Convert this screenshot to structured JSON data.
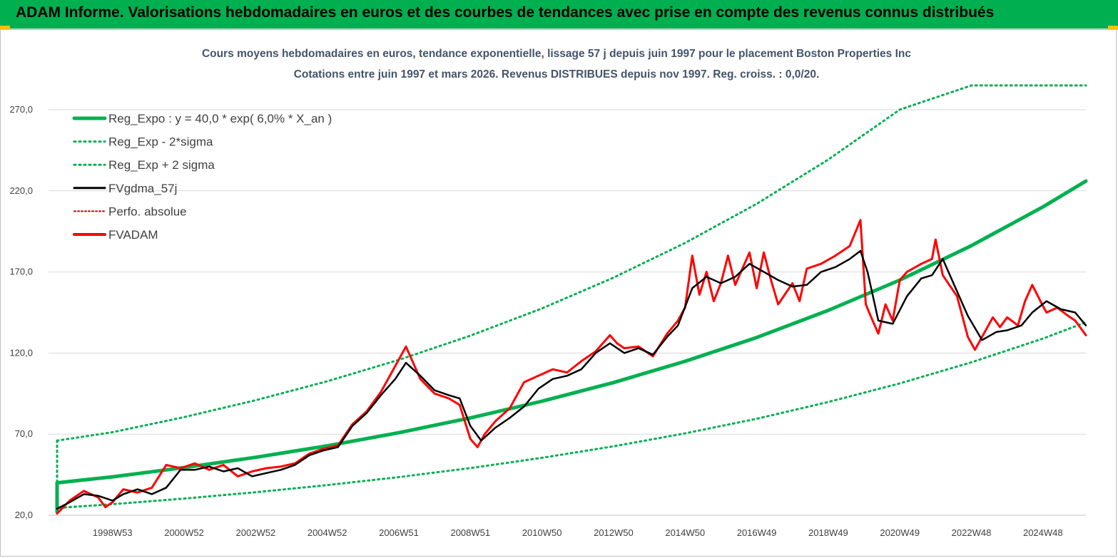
{
  "banner": {
    "title": "ADAM Informe. Valorisations hebdomadaires en euros et des courbes de tendances avec prise en compte des revenus connus distribués"
  },
  "colors": {
    "banner_bg": "#00b050",
    "reg_expo": "#00b050",
    "band": "#00b050",
    "fvgdma": "#000000",
    "perfo": "#c00000",
    "fvadam": "#ff0000",
    "grid": "#d9d9d9",
    "title": "#44546a"
  },
  "chart_data": {
    "type": "line",
    "title": [
      "Cours moyens hebdomadaires en euros, tendance exponentielle, lissage 57 j depuis juin 1997 pour le placement Boston Properties Inc",
      "Cotations entre juin 1997 et mars 2026. Revenus DISTRIBUES depuis nov 1997. Reg. croiss. : 0,0/20."
    ],
    "xlabel": "",
    "ylabel": "",
    "x_unit": "year",
    "xlim": [
      1997.45,
      2026.2
    ],
    "ylim": [
      20,
      290
    ],
    "yticks": [
      20,
      70,
      120,
      170,
      220,
      270
    ],
    "ytick_labels": [
      "20,0",
      "70,0",
      "120,0",
      "170,0",
      "220,0",
      "270,0"
    ],
    "xtick_labels": [
      "1998W53",
      "2000W52",
      "2002W52",
      "2004W52",
      "2006W51",
      "2008W51",
      "2010W50",
      "2012W50",
      "2014W50",
      "2016W49",
      "2018W49",
      "2020W49",
      "2022W48",
      "2024W48"
    ],
    "xtick_positions": [
      1999.0,
      2001.0,
      2003.0,
      2005.0,
      2007.0,
      2009.0,
      2011.0,
      2013.0,
      2015.0,
      2017.0,
      2019.0,
      2021.0,
      2023.0,
      2025.0
    ],
    "grid": true,
    "legend_position": "top-left",
    "legend": [
      {
        "label": "Reg_Expo : y = 40,0 * exp( 6,0% *  X_an )",
        "style": "thick-solid",
        "color": "#00b050"
      },
      {
        "label": "Reg_Exp - 2*sigma",
        "style": "dotted",
        "color": "#00b050"
      },
      {
        "label": "Reg_Exp + 2 sigma",
        "style": "dotted",
        "color": "#00b050"
      },
      {
        "label": "FVgdma_57j",
        "style": "solid",
        "color": "#000000"
      },
      {
        "label": "Perfo. absolue",
        "style": "dotted",
        "color": "#c00000"
      },
      {
        "label": "FVADAM",
        "style": "thick-solid",
        "color": "#ff0000"
      }
    ],
    "series": [
      {
        "name": "Reg_Expo",
        "x": [
          1997.45,
          1999.0,
          2001.0,
          2003.0,
          2005.0,
          2007.0,
          2009.0,
          2011.0,
          2013.0,
          2015.0,
          2017.0,
          2019.0,
          2021.0,
          2023.0,
          2025.0,
          2026.2
        ],
        "values": [
          40.0,
          43.7,
          49.4,
          55.7,
          62.8,
          70.9,
          80.0,
          90.3,
          101.8,
          114.9,
          129.6,
          146.3,
          165.0,
          186.2,
          210.1,
          226.0
        ]
      },
      {
        "name": "Reg_Exp - 2*sigma",
        "x": [
          1997.45,
          1999.0,
          2001.0,
          2003.0,
          2005.0,
          2007.0,
          2009.0,
          2011.0,
          2013.0,
          2015.0,
          2017.0,
          2019.0,
          2021.0,
          2023.0,
          2025.0,
          2026.2
        ],
        "values": [
          24.5,
          26.8,
          30.3,
          34.2,
          38.6,
          43.5,
          49.1,
          55.4,
          62.5,
          70.5,
          79.5,
          89.8,
          101.3,
          114.3,
          128.9,
          139.0
        ]
      },
      {
        "name": "Reg_Exp + 2 sigma",
        "x": [
          1997.45,
          1999.0,
          2001.0,
          2003.0,
          2005.0,
          2007.0,
          2009.0,
          2011.0,
          2013.0,
          2015.0,
          2017.0,
          2019.0,
          2021.0,
          2023.0,
          2025.0,
          2026.2
        ],
        "values": [
          66.0,
          71.2,
          80.5,
          90.9,
          102.6,
          115.8,
          130.7,
          147.5,
          166.5,
          187.9,
          212.0,
          239.3,
          270.1,
          285.0,
          285.0,
          285.0
        ]
      },
      {
        "name": "FVgdma_57j",
        "x": [
          1997.45,
          1997.8,
          1998.2,
          1998.6,
          1999.0,
          1999.3,
          1999.7,
          2000.1,
          2000.5,
          2000.9,
          2001.3,
          2001.7,
          2002.1,
          2002.5,
          2002.9,
          2003.3,
          2003.7,
          2004.1,
          2004.5,
          2004.9,
          2005.3,
          2005.7,
          2006.1,
          2006.5,
          2006.9,
          2007.2,
          2007.6,
          2008.0,
          2008.4,
          2008.7,
          2009.0,
          2009.3,
          2009.7,
          2010.1,
          2010.5,
          2010.9,
          2011.3,
          2011.7,
          2012.1,
          2012.5,
          2012.9,
          2013.3,
          2013.7,
          2014.1,
          2014.5,
          2014.8,
          2015.2,
          2015.6,
          2016.0,
          2016.4,
          2016.8,
          2017.2,
          2017.6,
          2018.0,
          2018.4,
          2018.8,
          2019.2,
          2019.6,
          2019.9,
          2020.1,
          2020.4,
          2020.8,
          2021.2,
          2021.6,
          2021.9,
          2022.2,
          2022.6,
          2022.9,
          2023.3,
          2023.7,
          2024.0,
          2024.4,
          2024.7,
          2025.1,
          2025.5,
          2025.9,
          2026.2
        ],
        "values": [
          24,
          28,
          33,
          32,
          29,
          33,
          36,
          33,
          37,
          48,
          48,
          50,
          47,
          49,
          44,
          46,
          48,
          51,
          57,
          60,
          62,
          75,
          83,
          94,
          104,
          114,
          106,
          97,
          94,
          92,
          75,
          66,
          74,
          80,
          87,
          98,
          104,
          106,
          110,
          120,
          126,
          120,
          123,
          119,
          130,
          137,
          160,
          167,
          163,
          167,
          175,
          170,
          165,
          161,
          162,
          170,
          173,
          178,
          183,
          170,
          140,
          138,
          155,
          166,
          168,
          178,
          158,
          143,
          128,
          133,
          134,
          137,
          145,
          152,
          147,
          145,
          137
        ]
      },
      {
        "name": "FVADAM",
        "x": [
          1997.45,
          1997.8,
          1998.2,
          1998.6,
          1998.8,
          1999.0,
          1999.3,
          1999.7,
          2000.1,
          2000.5,
          2000.9,
          2001.3,
          2001.7,
          2002.1,
          2002.5,
          2002.9,
          2003.3,
          2003.7,
          2004.1,
          2004.5,
          2004.9,
          2005.3,
          2005.7,
          2006.1,
          2006.5,
          2006.9,
          2007.2,
          2007.4,
          2007.6,
          2008.0,
          2008.4,
          2008.7,
          2009.0,
          2009.2,
          2009.4,
          2009.7,
          2010.1,
          2010.5,
          2010.9,
          2011.3,
          2011.7,
          2012.1,
          2012.5,
          2012.9,
          2013.1,
          2013.3,
          2013.7,
          2014.1,
          2014.5,
          2014.8,
          2015.0,
          2015.2,
          2015.4,
          2015.6,
          2015.8,
          2016.0,
          2016.2,
          2016.4,
          2016.8,
          2017.0,
          2017.2,
          2017.4,
          2017.6,
          2018.0,
          2018.2,
          2018.4,
          2018.8,
          2019.2,
          2019.6,
          2019.9,
          2020.05,
          2020.2,
          2020.4,
          2020.6,
          2020.8,
          2021.0,
          2021.2,
          2021.6,
          2021.9,
          2022.0,
          2022.2,
          2022.6,
          2022.9,
          2023.1,
          2023.3,
          2023.6,
          2023.8,
          2024.0,
          2024.3,
          2024.5,
          2024.7,
          2025.0,
          2025.1,
          2025.4,
          2025.7,
          2025.9,
          2026.2
        ],
        "values": [
          21,
          29,
          35,
          31,
          25,
          28,
          36,
          34,
          37,
          51,
          49,
          52,
          48,
          51,
          44,
          47,
          49,
          50,
          52,
          58,
          61,
          63,
          76,
          84,
          96,
          112,
          124,
          114,
          104,
          95,
          92,
          88,
          67,
          62,
          70,
          78,
          86,
          102,
          106,
          110,
          108,
          115,
          121,
          131,
          126,
          123,
          124,
          118,
          132,
          140,
          148,
          180,
          156,
          170,
          152,
          163,
          180,
          162,
          182,
          160,
          182,
          165,
          150,
          163,
          152,
          172,
          175,
          180,
          186,
          202,
          150,
          142,
          132,
          150,
          140,
          165,
          170,
          175,
          178,
          190,
          168,
          155,
          130,
          122,
          130,
          142,
          136,
          142,
          137,
          152,
          162,
          149,
          145,
          148,
          143,
          140,
          131
        ]
      }
    ]
  }
}
